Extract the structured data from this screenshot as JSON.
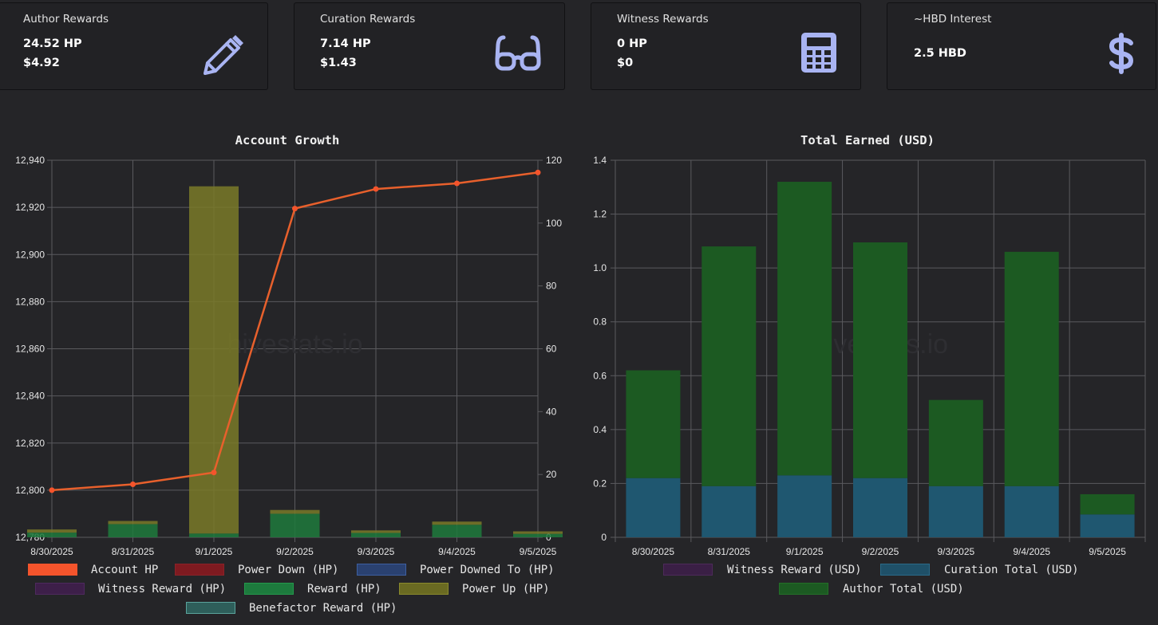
{
  "cards": [
    {
      "title": "Author Rewards",
      "lines": [
        "24.52 HP",
        "$4.92"
      ],
      "icon": "pencil-icon"
    },
    {
      "title": "Curation Rewards",
      "lines": [
        "7.14 HP",
        "$1.43"
      ],
      "icon": "glasses-icon"
    },
    {
      "title": "Witness Rewards",
      "lines": [
        "0 HP",
        "$0"
      ],
      "icon": "calculator-icon"
    },
    {
      "title": "~HBD Interest",
      "lines": [
        "2.5 HBD"
      ],
      "icon": "dollar-icon"
    }
  ],
  "accent_icon_color": "#a9b4f2",
  "watermark": "hivestats.io",
  "chart_data": [
    {
      "type": "bar",
      "title": "Account Growth",
      "categories": [
        "8/30/2025",
        "8/31/2025",
        "9/1/2025",
        "9/2/2025",
        "9/3/2025",
        "9/4/2025",
        "9/5/2025"
      ],
      "y_left_ticks": [
        "12,780",
        "12,800",
        "12,820",
        "12,840",
        "12,860",
        "12,880",
        "12,900",
        "12,920",
        "12,940"
      ],
      "y_right_ticks": [
        "0",
        "20",
        "40",
        "60",
        "80",
        "100",
        "120"
      ],
      "ylim_left": [
        12780,
        12940
      ],
      "ylim_right": [
        0,
        120
      ],
      "line_series": {
        "name": "Account HP",
        "axis": "left",
        "color": "#e8602c",
        "values": [
          12800,
          12802.5,
          12807.5,
          12919.5,
          12927.8,
          12930.2,
          12934.8
        ]
      },
      "bar_series": [
        {
          "name": "Reward (HP)",
          "axis": "right",
          "color": "#1e7a3c",
          "values": [
            1.5,
            4.2,
            1.2,
            7.5,
            1.4,
            4.0,
            1.1
          ]
        },
        {
          "name": "Power Up (HP)",
          "axis": "right",
          "color": "#7a7a28",
          "values": [
            1.0,
            1.0,
            110.5,
            1.2,
            0.8,
            1.0,
            0.8
          ]
        }
      ],
      "legend": [
        {
          "name": "Account HP",
          "fill": "#f4542c",
          "border": "#f4542c"
        },
        {
          "name": "Power Down (HP)",
          "fill": "#7e1a20",
          "border": "#8b2228"
        },
        {
          "name": "Power Downed To (HP)",
          "fill": "#2a4170",
          "border": "#3d5fa0"
        },
        {
          "name": "Witness Reward (HP)",
          "fill": "#3d1f49",
          "border": "#4e2a5e"
        },
        {
          "name": "Reward (HP)",
          "fill": "#1d7a3d",
          "border": "#24994c"
        },
        {
          "name": "Power Up (HP)",
          "fill": "#6a6a22",
          "border": "#8a8a2c"
        },
        {
          "name": "Benefactor Reward (HP)",
          "fill": "#2e5e5a",
          "border": "#5aa39c"
        }
      ]
    },
    {
      "type": "bar",
      "title": "Total Earned (USD)",
      "stacked": true,
      "categories": [
        "8/30/2025",
        "8/31/2025",
        "9/1/2025",
        "9/2/2025",
        "9/3/2025",
        "9/4/2025",
        "9/5/2025"
      ],
      "y_ticks": [
        "0",
        "0.2",
        "0.4",
        "0.6",
        "0.8",
        "1.0",
        "1.2",
        "1.4"
      ],
      "ylim": [
        0,
        1.4
      ],
      "series": [
        {
          "name": "Curation Total (USD)",
          "color": "#1f5770",
          "values": [
            0.22,
            0.19,
            0.23,
            0.22,
            0.19,
            0.19,
            0.085
          ]
        },
        {
          "name": "Author Total (USD)",
          "color": "#1c5a22",
          "values": [
            0.4,
            0.89,
            1.09,
            0.875,
            0.32,
            0.87,
            0.075
          ]
        }
      ],
      "legend": [
        {
          "name": "Witness Reward (USD)",
          "fill": "#3a1f45",
          "border": "#4d2a5a"
        },
        {
          "name": "Curation Total (USD)",
          "fill": "#1f5068",
          "border": "#2a6a88"
        },
        {
          "name": "Author Total (USD)",
          "fill": "#1c5a22",
          "border": "#237028"
        }
      ]
    }
  ]
}
